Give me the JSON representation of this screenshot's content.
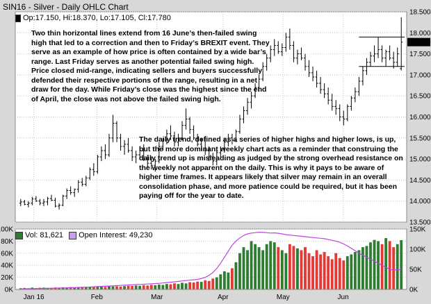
{
  "window": {
    "title": "SIN16 - Silver - Daily OHLC Chart"
  },
  "price_panel": {
    "legend": {
      "ohlc_text": "Op:17.150, Hi:18.370, Lo:17.105, Cl:17.780"
    },
    "last_price_label": "17.780",
    "annotation_1": "Two thin horizontal lines extend from 16 June’s then-failed swing high that led to a correction and then to Friday’s BREXIT event. They serve as an example of how price is often contained by a wide bar’s range. Last Friday serves as another potential failed swing high. Price closed mid-range, indicating sellers and buyers successfully defended their respective portions of the range, resulting in a net draw for the day. While Friday’s close was the highest since the end of April, the close was not above the failed swing high.",
    "annotation_2": "The daily trend, defined as a series of higher highs and higher lows, is up, but the more dominant weekly chart acts as a reminder that construing the daily trend up is misleading as judged by the strong overhead resistance on the weekly not apparent on the daily. This is why it pays to be aware of higher time frames. It appears likely that silver may remain in an overall consolidation phase, and more patience could be required, but it has been paying off for the year to date."
  },
  "volume_panel": {
    "legend": {
      "vol_text": "Vol: 81,621",
      "oi_text": "Open Interest: 49,230"
    }
  },
  "colors": {
    "background": "#d8d8d8",
    "plot_bg": "#ffffff",
    "ohlc": "#000000",
    "volume_up": "#2e7d32",
    "volume_down": "#e53935",
    "open_interest": "#c040e0",
    "vol_swatch": "#2e7d32",
    "oi_swatch": "#c8a0e8"
  },
  "chart_data": [
    {
      "type": "ohlc",
      "title": "SIN16 - Silver - Daily OHLC Chart",
      "y_ticks": [
        "13.500",
        "14.000",
        "14.500",
        "15.000",
        "15.500",
        "16.000",
        "16.500",
        "17.000",
        "17.500",
        "18.000",
        "18.500"
      ],
      "ylim": [
        13.5,
        18.5
      ],
      "x_ticks": [
        "Jan 16",
        "Feb",
        "Mar",
        "Apr",
        "May",
        "Jun"
      ],
      "grid": true,
      "series": [
        {
          "ohlc": [
            [
              13.95,
              14.05,
              13.88,
              13.98
            ],
            [
              13.98,
              14.03,
              13.9,
              13.92
            ],
            [
              13.92,
              14.0,
              13.85,
              13.95
            ],
            [
              13.95,
              14.1,
              13.9,
              14.05
            ],
            [
              14.05,
              14.12,
              13.98,
              14.0
            ],
            [
              14.0,
              14.05,
              13.9,
              13.95
            ],
            [
              13.95,
              14.05,
              13.88,
              13.98
            ],
            [
              13.98,
              14.1,
              13.9,
              14.06
            ],
            [
              14.06,
              14.15,
              14.0,
              14.02
            ],
            [
              14.02,
              14.08,
              13.85,
              13.88
            ],
            [
              13.88,
              13.95,
              13.8,
              13.9
            ],
            [
              13.9,
              14.15,
              13.88,
              14.12
            ],
            [
              14.12,
              14.3,
              14.05,
              14.25
            ],
            [
              14.25,
              14.35,
              14.15,
              14.2
            ],
            [
              14.2,
              14.3,
              14.1,
              14.28
            ],
            [
              14.28,
              14.5,
              14.2,
              14.45
            ],
            [
              14.45,
              14.55,
              14.35,
              14.4
            ],
            [
              14.4,
              14.6,
              14.35,
              14.55
            ],
            [
              14.55,
              14.8,
              14.5,
              14.75
            ],
            [
              14.75,
              14.9,
              14.6,
              14.7
            ],
            [
              14.7,
              15.1,
              14.65,
              15.05
            ],
            [
              15.05,
              15.3,
              14.95,
              15.2
            ],
            [
              15.2,
              15.35,
              15.0,
              15.1
            ],
            [
              15.1,
              15.6,
              15.05,
              15.5
            ],
            [
              15.5,
              16.05,
              15.4,
              15.85
            ],
            [
              15.85,
              15.9,
              15.4,
              15.5
            ],
            [
              15.5,
              15.6,
              15.2,
              15.3
            ],
            [
              15.3,
              15.45,
              15.1,
              15.35
            ],
            [
              15.35,
              15.5,
              15.15,
              15.2
            ],
            [
              15.2,
              15.3,
              14.95,
              15.05
            ],
            [
              15.05,
              15.2,
              14.9,
              15.1
            ],
            [
              15.1,
              15.3,
              15.0,
              15.2
            ],
            [
              15.2,
              15.35,
              14.95,
              15.0
            ],
            [
              15.0,
              15.1,
              14.8,
              14.9
            ],
            [
              14.9,
              15.05,
              14.75,
              14.85
            ],
            [
              14.85,
              15.0,
              14.7,
              14.95
            ],
            [
              14.95,
              15.4,
              14.9,
              15.3
            ],
            [
              15.3,
              15.5,
              15.2,
              15.45
            ],
            [
              15.45,
              15.7,
              15.35,
              15.6
            ],
            [
              15.6,
              15.8,
              15.45,
              15.55
            ],
            [
              15.55,
              15.65,
              15.3,
              15.4
            ],
            [
              15.4,
              15.6,
              15.3,
              15.5
            ],
            [
              15.5,
              15.9,
              15.45,
              15.8
            ],
            [
              15.8,
              16.2,
              15.7,
              15.95
            ],
            [
              15.95,
              16.0,
              15.6,
              15.7
            ],
            [
              15.7,
              15.8,
              15.45,
              15.5
            ],
            [
              15.5,
              15.6,
              15.3,
              15.35
            ],
            [
              15.35,
              15.5,
              15.2,
              15.45
            ],
            [
              15.45,
              15.55,
              15.1,
              15.2
            ],
            [
              15.2,
              15.3,
              14.95,
              15.05
            ],
            [
              15.05,
              15.15,
              14.85,
              14.95
            ],
            [
              14.95,
              15.2,
              14.85,
              15.15
            ],
            [
              15.15,
              15.3,
              15.05,
              15.25
            ],
            [
              15.25,
              15.5,
              15.15,
              15.4
            ],
            [
              15.4,
              15.6,
              15.3,
              15.5
            ],
            [
              15.5,
              15.6,
              15.35,
              15.45
            ],
            [
              15.45,
              15.7,
              15.4,
              15.65
            ],
            [
              15.65,
              16.05,
              15.6,
              15.95
            ],
            [
              15.95,
              16.25,
              15.85,
              16.15
            ],
            [
              16.15,
              16.45,
              16.05,
              16.35
            ],
            [
              16.35,
              16.6,
              16.2,
              16.5
            ],
            [
              16.5,
              16.8,
              16.45,
              16.7
            ],
            [
              16.7,
              17.0,
              16.6,
              16.9
            ],
            [
              16.9,
              17.3,
              16.85,
              17.2
            ],
            [
              17.2,
              17.5,
              17.1,
              17.4
            ],
            [
              17.4,
              17.7,
              17.3,
              17.6
            ],
            [
              17.6,
              17.85,
              17.45,
              17.7
            ],
            [
              17.7,
              17.8,
              17.5,
              17.55
            ],
            [
              17.55,
              17.75,
              17.45,
              17.65
            ],
            [
              17.65,
              18.0,
              17.55,
              17.9
            ],
            [
              17.9,
              18.1,
              17.6,
              17.7
            ],
            [
              17.7,
              17.8,
              17.3,
              17.4
            ],
            [
              17.4,
              17.6,
              17.25,
              17.5
            ],
            [
              17.5,
              17.65,
              17.35,
              17.4
            ],
            [
              17.4,
              17.5,
              17.1,
              17.2
            ],
            [
              17.2,
              17.35,
              16.95,
              17.05
            ],
            [
              17.05,
              17.2,
              16.85,
              16.95
            ],
            [
              16.95,
              17.1,
              16.7,
              16.8
            ],
            [
              16.8,
              16.95,
              16.55,
              16.65
            ],
            [
              16.65,
              16.8,
              16.45,
              16.55
            ],
            [
              16.55,
              16.7,
              16.3,
              16.4
            ],
            [
              16.4,
              16.55,
              16.15,
              16.25
            ],
            [
              16.25,
              16.4,
              16.05,
              16.2
            ],
            [
              16.2,
              16.3,
              15.9,
              16.0
            ],
            [
              16.0,
              16.15,
              15.8,
              15.95
            ],
            [
              15.95,
              16.3,
              15.9,
              16.25
            ],
            [
              16.25,
              16.5,
              16.15,
              16.45
            ],
            [
              16.45,
              16.7,
              16.35,
              16.6
            ],
            [
              16.6,
              16.95,
              16.5,
              16.85
            ],
            [
              16.85,
              17.2,
              16.75,
              17.1
            ],
            [
              17.1,
              17.4,
              17.0,
              17.3
            ],
            [
              17.3,
              17.55,
              17.2,
              17.45
            ],
            [
              17.45,
              17.7,
              17.3,
              17.5
            ],
            [
              17.5,
              17.9,
              17.4,
              17.6
            ],
            [
              17.6,
              17.7,
              17.3,
              17.4
            ],
            [
              17.4,
              17.6,
              17.2,
              17.55
            ],
            [
              17.55,
              17.7,
              17.35,
              17.4
            ],
            [
              17.4,
              17.55,
              17.15,
              17.3
            ],
            [
              17.3,
              17.65,
              17.2,
              17.5
            ],
            [
              17.15,
              18.37,
              17.105,
              17.78
            ]
          ]
        }
      ],
      "reference_lines": [
        17.2,
        17.9
      ]
    },
    {
      "type": "bar",
      "ylim_left": [
        0,
        100000
      ],
      "ylim_right": [
        0,
        150000
      ],
      "y_ticks_left": [
        "0K",
        "20K",
        "40K",
        "60K",
        "80K",
        "100K"
      ],
      "y_ticks_right": [
        "0K",
        "50K",
        "100K",
        "150K"
      ],
      "series": [
        {
          "name": "Vol",
          "axis": "left",
          "values": [
            2000,
            2500,
            2000,
            3000,
            2200,
            2800,
            3000,
            2500,
            2600,
            3200,
            2800,
            3500,
            3000,
            3800,
            3200,
            4000,
            3500,
            4200,
            3800,
            4500,
            4000,
            5000,
            4200,
            5500,
            5000,
            5200,
            4800,
            5500,
            6000,
            5800,
            6500,
            6000,
            7000,
            6500,
            7500,
            7000,
            8000,
            7500,
            9000,
            8500,
            10000,
            9000,
            11000,
            10000,
            12000,
            11500,
            13000,
            12500,
            15000,
            14000,
            18000,
            20000,
            25000,
            30000,
            28000,
            35000,
            45000,
            60000,
            70000,
            65000,
            80000,
            75000,
            70000,
            65000,
            75000,
            80000,
            78000,
            70000,
            65000,
            60000,
            75000,
            72000,
            68000,
            65000,
            70000,
            60000,
            55000,
            65000,
            58000,
            62000,
            55000,
            50000,
            60000,
            52000,
            48000,
            55000,
            58000,
            62000,
            65000,
            70000,
            72000,
            78000,
            82000,
            80000,
            75000,
            85000,
            80000,
            70000,
            75000,
            81621
          ]
        },
        {
          "name": "Open Interest",
          "axis": "right",
          "values": [
            1000,
            1200,
            1500,
            1800,
            2000,
            2200,
            2500,
            2800,
            3000,
            3300,
            3500,
            3800,
            4000,
            4300,
            4600,
            5000,
            5300,
            5600,
            6000,
            6500,
            7000,
            7500,
            8000,
            8500,
            9000,
            9500,
            10000,
            10500,
            11000,
            11500,
            12000,
            12500,
            13000,
            13500,
            14000,
            14500,
            15000,
            16000,
            17000,
            18000,
            19000,
            20000,
            21000,
            22000,
            23000,
            24000,
            25000,
            27000,
            30000,
            35000,
            42000,
            52000,
            65000,
            80000,
            95000,
            110000,
            120000,
            128000,
            134000,
            138000,
            140000,
            141000,
            142000,
            141500,
            141000,
            140000,
            140500,
            139500,
            138000,
            136000,
            135000,
            134000,
            133000,
            132000,
            131000,
            130000,
            129000,
            128000,
            127000,
            126000,
            124000,
            122000,
            120000,
            117000,
            113000,
            108000,
            102000,
            96000,
            90000,
            85000,
            80000,
            75000,
            70000,
            65000,
            60000,
            55000,
            50000,
            48000,
            49000,
            49230
          ]
        }
      ]
    }
  ]
}
